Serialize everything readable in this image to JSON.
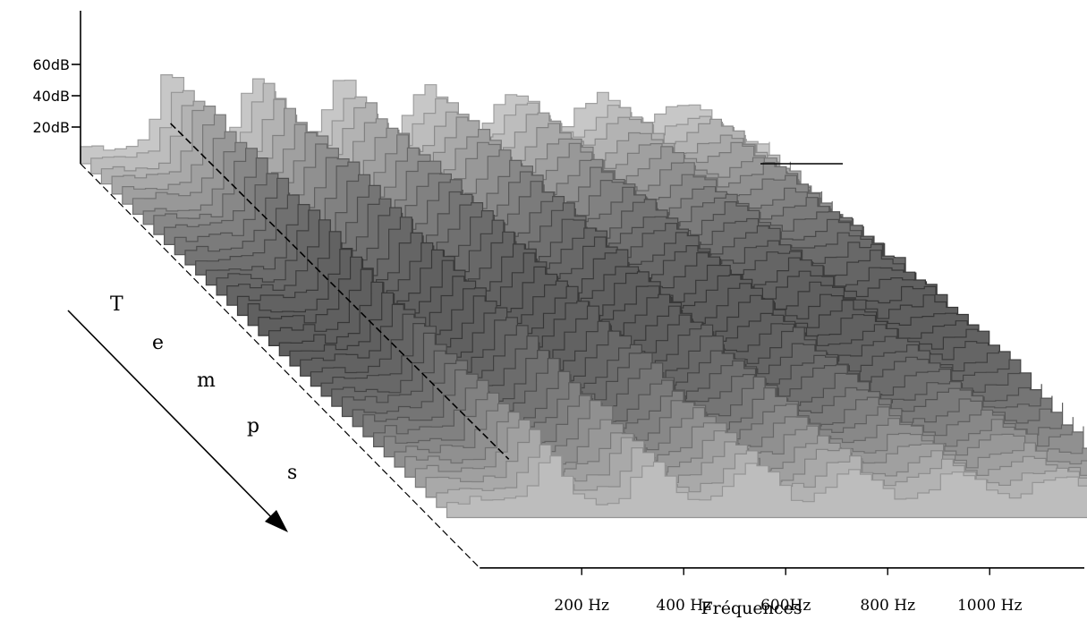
{
  "chart_data": {
    "type": "area",
    "subtype": "waterfall-spectrogram",
    "title": "",
    "xlabel": "Fréquences",
    "zlabel_letters": [
      "T",
      "e",
      "m",
      "p",
      "s"
    ],
    "x_ticks": [
      "200 Hz",
      "400 Hz",
      "600Hz",
      "800 Hz",
      "1000 Hz"
    ],
    "x_tick_values": [
      200,
      400,
      600,
      800,
      1000
    ],
    "y_ticks": [
      "60dB",
      "40dB",
      "20dB"
    ],
    "y_tick_values": [
      60,
      40,
      20
    ],
    "xlim": [
      0,
      1200
    ],
    "ylim": [
      0,
      70
    ],
    "time_slices": 36,
    "harmonic_ridges_hz": [
      150,
      300,
      450,
      600,
      750,
      900,
      1050
    ],
    "fundamental_trace": "dashed",
    "grid": false,
    "colors": {
      "ink": "#000000",
      "light": "#f4f4f4",
      "dark": "#3a3a3a"
    }
  }
}
